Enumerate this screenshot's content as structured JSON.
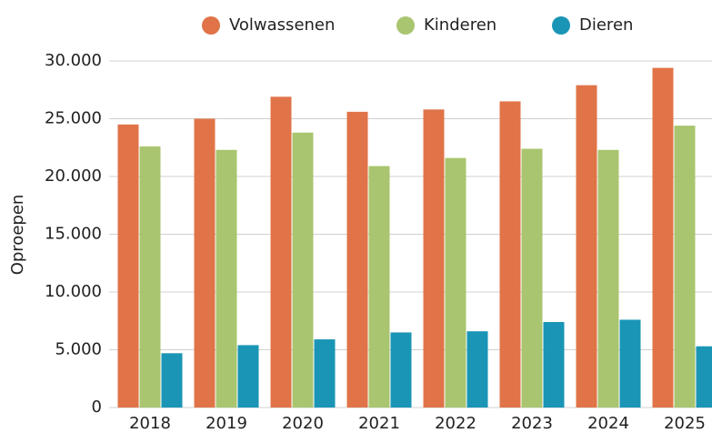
{
  "chart_data": {
    "type": "bar",
    "categories": [
      "2018",
      "2019",
      "2020",
      "2021",
      "2022",
      "2023",
      "2024",
      "2025"
    ],
    "series": [
      {
        "name": "Volwassenen",
        "color": "#e07448",
        "values": [
          24500,
          25000,
          26900,
          25600,
          25800,
          26500,
          27900,
          29400
        ]
      },
      {
        "name": "Kinderen",
        "color": "#a9c56f",
        "values": [
          22600,
          22300,
          23800,
          20900,
          21600,
          22400,
          22300,
          24400
        ]
      },
      {
        "name": "Dieren",
        "color": "#1a95b5",
        "values": [
          4700,
          5400,
          5900,
          6500,
          6600,
          7400,
          7600,
          5300
        ]
      }
    ],
    "ylabel": "Oproepen",
    "ylim": [
      0,
      30000
    ],
    "yticks": [
      0,
      {
        "value": 5000,
        "label": "5.000"
      },
      {
        "value": 10000,
        "label": "10.000"
      },
      {
        "value": 15000,
        "label": "15.000"
      },
      {
        "value": 20000,
        "label": "20.000"
      },
      {
        "value": 25000,
        "label": "25.000"
      },
      {
        "value": 30000,
        "label": "30.000"
      }
    ],
    "grid": true,
    "legend": "top"
  }
}
